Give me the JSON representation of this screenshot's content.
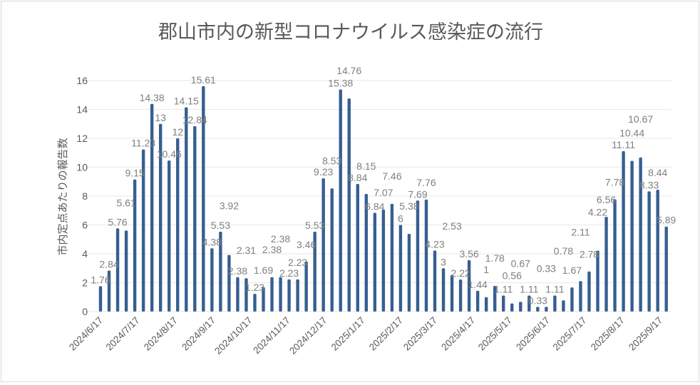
{
  "chart_data": {
    "type": "bar",
    "title": "郡山市内の新型コロナウイルス感染症の流行",
    "xlabel": "",
    "ylabel": "市内定点あたりの報告数",
    "ylim": [
      0,
      16
    ],
    "yticks": [
      0,
      2,
      4,
      6,
      8,
      10,
      12,
      14,
      16
    ],
    "grid": true,
    "legend": "none",
    "x_start": "2024-06-17",
    "interval_days": 7,
    "xtick_labels": [
      "2024/6/17",
      "2024/7/17",
      "2024/8/17",
      "2024/9/17",
      "2024/10/17",
      "2024/11/17",
      "2024/12/17",
      "2025/1/17",
      "2025/2/17",
      "2025/3/17",
      "2025/4/17",
      "2025/5/17",
      "2025/6/17",
      "2025/7/17",
      "2025/8/17",
      "2025/9/17"
    ],
    "values": [
      1.76,
      2.84,
      5.76,
      5.61,
      9.15,
      11.23,
      14.38,
      13,
      10.46,
      12,
      14.15,
      12.84,
      15.61,
      4.38,
      5.53,
      3.92,
      2.38,
      2.31,
      1.23,
      1.69,
      2.38,
      2.38,
      2.23,
      2.23,
      3.46,
      5.53,
      9.23,
      8.53,
      15.38,
      14.76,
      8.84,
      8.15,
      6.84,
      7.07,
      7.46,
      6,
      5.38,
      7.69,
      7.76,
      4.23,
      3,
      2.53,
      2.22,
      3.56,
      1.44,
      1,
      1.78,
      1.11,
      0.56,
      0.67,
      1.11,
      0.33,
      0.33,
      1.11,
      0.78,
      1.67,
      2.11,
      2.78,
      4.22,
      6.56,
      7.78,
      11.11,
      10.44,
      10.67,
      8.33,
      8.44,
      5.89
    ],
    "colors": {
      "bar": "#365f91",
      "label": "#7f7f7f",
      "grid": "#ececec",
      "title": "#595959"
    }
  }
}
